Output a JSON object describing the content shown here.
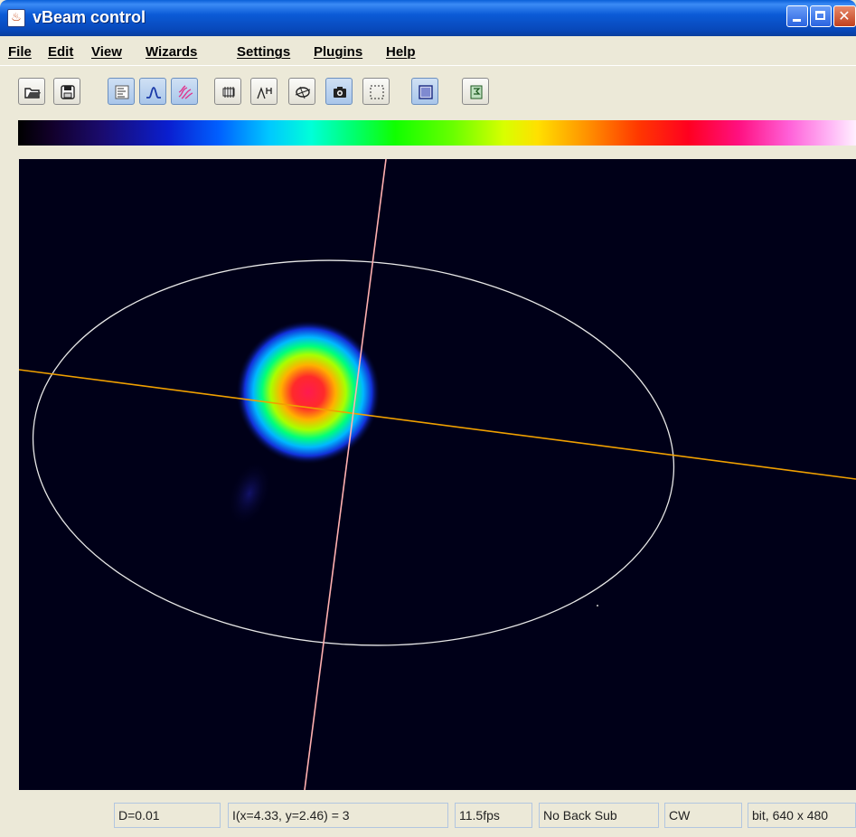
{
  "window": {
    "title": "vBeam control",
    "app_icon": "java-cup-icon"
  },
  "menu": [
    {
      "label": "File"
    },
    {
      "label": "Edit"
    },
    {
      "label": "View"
    },
    {
      "label": "Wizards"
    },
    {
      "label": "Settings"
    },
    {
      "label": "Plugins"
    },
    {
      "label": "Help"
    }
  ],
  "toolbar": [
    {
      "icon": "open-folder-icon",
      "active": false
    },
    {
      "icon": "save-disk-icon",
      "active": false
    },
    {
      "icon": "properties-list-icon",
      "active": true
    },
    {
      "icon": "gaussian-profile-icon",
      "active": true
    },
    {
      "icon": "contour-icon",
      "active": true
    },
    {
      "icon": "ccd-chip-icon",
      "active": false
    },
    {
      "icon": "histogram-icon",
      "active": false
    },
    {
      "icon": "ellipse-fit-icon",
      "active": false
    },
    {
      "icon": "camera-snapshot-icon",
      "active": false
    },
    {
      "icon": "region-select-icon",
      "active": false
    },
    {
      "icon": "background-icon",
      "active": true
    },
    {
      "icon": "exit-icon",
      "active": false
    }
  ],
  "colors": {
    "beam_background": "#000018",
    "ellipse": "#e8e8e8",
    "major_axis": "#f0a000",
    "minor_axis": "#ffb0b0"
  },
  "status": {
    "diameter": "D=0.01",
    "intensity": "I(x=4.33, y=2.46) = 3",
    "fps": "11.5fps",
    "background": "No Back Sub",
    "mode": "CW",
    "resolution": "bit, 640 x 480"
  }
}
